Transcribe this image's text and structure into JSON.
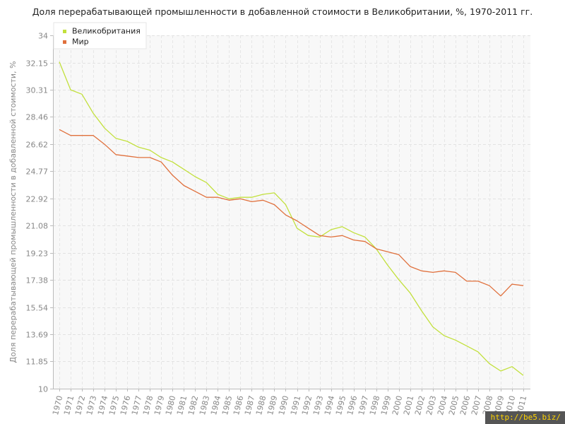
{
  "chart_data": {
    "type": "line",
    "title": "Доля перерабатывающей промышленности в добавленной стоимости в Великобритании, %, 1970-2011 гг.",
    "ylabel": "Доля перерабатывающей промышленности в добавленной стоимости, %",
    "xlabel": "",
    "ylim": [
      10,
      34
    ],
    "yticks": [
      "10",
      "11.85",
      "13.69",
      "15.54",
      "17.38",
      "19.23",
      "21.08",
      "22.92",
      "24.77",
      "26.62",
      "28.46",
      "30.31",
      "32.15",
      "34"
    ],
    "grid": true,
    "legend_position": "top-left",
    "categories": [
      "1970",
      "1971",
      "1972",
      "1973",
      "1974",
      "1975",
      "1976",
      "1977",
      "1978",
      "1979",
      "1980",
      "1981",
      "1982",
      "1983",
      "1984",
      "1985",
      "1986",
      "1987",
      "1988",
      "1989",
      "1990",
      "1991",
      "1992",
      "1993",
      "1994",
      "1995",
      "1996",
      "1997",
      "1998",
      "1999",
      "2000",
      "2001",
      "2002",
      "2003",
      "2004",
      "2005",
      "2006",
      "2007",
      "2008",
      "2009",
      "2010",
      "2011"
    ],
    "series": [
      {
        "name": "Великобритания",
        "color": "#c2e03c",
        "values": [
          32.2,
          30.3,
          30.0,
          28.7,
          27.7,
          27.0,
          26.8,
          26.4,
          26.2,
          25.7,
          25.4,
          24.9,
          24.4,
          24.0,
          23.2,
          22.9,
          23.0,
          23.0,
          23.2,
          23.3,
          22.5,
          20.9,
          20.4,
          20.3,
          20.8,
          21.0,
          20.6,
          20.3,
          19.5,
          18.4,
          17.4,
          16.5,
          15.3,
          14.2,
          13.6,
          13.3,
          12.9,
          12.5,
          11.7,
          11.2,
          11.5,
          10.9
        ]
      },
      {
        "name": "Мир",
        "color": "#e0703c",
        "values": [
          27.6,
          27.2,
          27.2,
          27.2,
          26.6,
          25.9,
          25.8,
          25.7,
          25.7,
          25.4,
          24.5,
          23.8,
          23.4,
          23.0,
          23.0,
          22.8,
          22.9,
          22.7,
          22.8,
          22.5,
          21.8,
          21.4,
          20.9,
          20.4,
          20.3,
          20.4,
          20.1,
          20.0,
          19.5,
          19.3,
          19.1,
          18.3,
          18.0,
          17.9,
          18.0,
          17.9,
          17.3,
          17.3,
          17.0,
          16.3,
          17.1,
          17.0
        ]
      }
    ]
  },
  "watermark": "http://be5.biz/"
}
